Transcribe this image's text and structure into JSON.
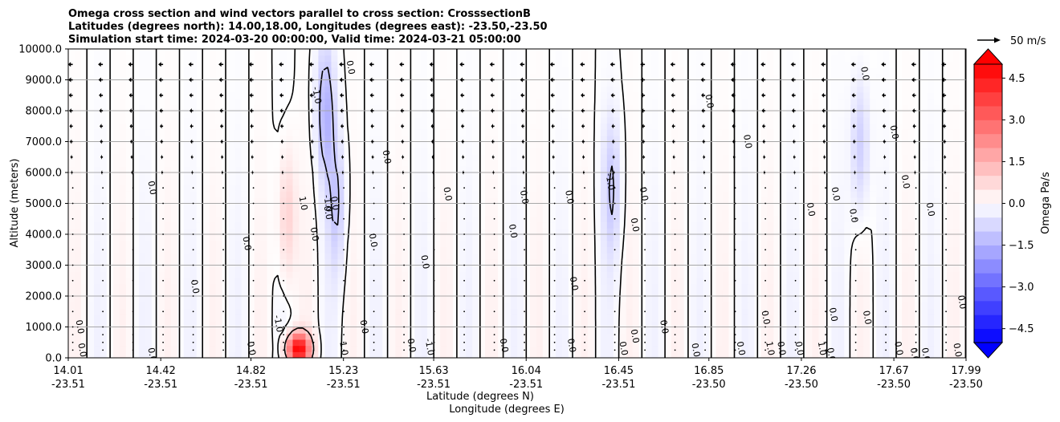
{
  "chart_data": {
    "type": "contour",
    "title_lines": [
      "Omega cross section and wind vectors parallel to cross section: CrosssectionB",
      "Latitudes (degrees north): 14.00,18.00, Longitudes (degrees east): -23.50,-23.50",
      "Simulation start time: 2024-03-20 00:00:00, Valid time: 2024-03-21 05:00:00"
    ],
    "ylabel": "Altitude (meters)",
    "xlabel_lines": [
      "Latitude (degrees N)",
      "Longitude (degrees E)"
    ],
    "ylim": [
      0,
      10000
    ],
    "yticks": [
      0,
      1000,
      2000,
      3000,
      4000,
      5000,
      6000,
      7000,
      8000,
      9000,
      10000
    ],
    "ytick_labels": [
      "0.0",
      "1000.0",
      "2000.0",
      "3000.0",
      "4000.0",
      "5000.0",
      "6000.0",
      "7000.0",
      "8000.0",
      "9000.0",
      "10000.0"
    ],
    "xlim": [
      14.01,
      17.99
    ],
    "xticks": [
      {
        "lat": 14.01,
        "lat_label": "14.01",
        "lon_label": "-23.51"
      },
      {
        "lat": 14.42,
        "lat_label": "14.42",
        "lon_label": "-23.51"
      },
      {
        "lat": 14.82,
        "lat_label": "14.82",
        "lon_label": "-23.51"
      },
      {
        "lat": 15.23,
        "lat_label": "15.23",
        "lon_label": "-23.51"
      },
      {
        "lat": 15.63,
        "lat_label": "15.63",
        "lon_label": "-23.51"
      },
      {
        "lat": 16.04,
        "lat_label": "16.04",
        "lon_label": "-23.51"
      },
      {
        "lat": 16.45,
        "lat_label": "16.45",
        "lon_label": "-23.51"
      },
      {
        "lat": 16.85,
        "lat_label": "16.85",
        "lon_label": "-23.50"
      },
      {
        "lat": 17.26,
        "lat_label": "17.26",
        "lon_label": "-23.50"
      },
      {
        "lat": 17.67,
        "lat_label": "17.67",
        "lon_label": "-23.50"
      },
      {
        "lat": 17.99,
        "lat_label": "17.99",
        "lon_label": "-23.50"
      }
    ],
    "grid": true,
    "colorbar": {
      "label": "Omega Pa/s",
      "vmin": -5.0,
      "vmax": 5.0,
      "ticks": [
        4.5,
        3.0,
        1.5,
        0.0,
        -1.5,
        -3.0,
        -4.5
      ],
      "tick_labels": [
        "4.5",
        "3.0",
        "1.5",
        "0.0",
        "−1.5",
        "−3.0",
        "−4.5"
      ],
      "extend": "both",
      "negative_color": "#0000ff",
      "positive_color": "#ff0000",
      "center_color": "#ffffff"
    },
    "quiver_key": {
      "label": "50 m/s",
      "speed": 50
    },
    "wind_rows_m": [
      250,
      500,
      750,
      1000,
      1500,
      2000,
      2500,
      3000,
      3500,
      4000,
      4500,
      5000,
      5500,
      6000,
      6500,
      7000,
      7500,
      8000,
      8500,
      9000,
      9500
    ],
    "wind_u_by_altitude": [
      {
        "altitude": 1000,
        "u": -2
      },
      {
        "altitude": 5000,
        "u": -3
      },
      {
        "altitude": 6000,
        "u": -5
      },
      {
        "altitude": 7000,
        "u": -8
      },
      {
        "altitude": 8000,
        "u": -10
      },
      {
        "altitude": 9000,
        "u": -12
      },
      {
        "altitude": 9500,
        "u": -13
      }
    ],
    "omega_features": [
      {
        "lat": 15.03,
        "alt": 300,
        "value": 5.0,
        "note": "strong updraft core near surface"
      },
      {
        "lat": 14.98,
        "alt": 4500,
        "value": 1.0
      },
      {
        "lat": 15.15,
        "alt": 8000,
        "value": -1.5
      },
      {
        "lat": 15.2,
        "alt": 5000,
        "value": -1.0
      },
      {
        "lat": 16.42,
        "alt": 5500,
        "value": -1.0
      },
      {
        "lat": 17.52,
        "alt": 6800,
        "value": -1.0
      }
    ],
    "contour_labels": [
      {
        "text": "0.0",
        "lat": 14.06,
        "alt": 1000
      },
      {
        "text": "0.0",
        "lat": 14.07,
        "alt": 250
      },
      {
        "text": "0.0",
        "lat": 14.38,
        "alt": 100
      },
      {
        "text": "0.0",
        "lat": 14.38,
        "alt": 5500
      },
      {
        "text": "0.0",
        "lat": 14.57,
        "alt": 2300
      },
      {
        "text": "0.0",
        "lat": 14.8,
        "alt": 3700
      },
      {
        "text": "0.0",
        "lat": 14.82,
        "alt": 300
      },
      {
        "text": "1.0",
        "lat": 15.05,
        "alt": 5000
      },
      {
        "text": "0.0",
        "lat": 15.1,
        "alt": 4000
      },
      {
        "text": "-1.0",
        "lat": 15.16,
        "alt": 5000
      },
      {
        "text": "0.0",
        "lat": 15.19,
        "alt": 5000
      },
      {
        "text": "-1.0",
        "lat": 15.11,
        "alt": 8500
      },
      {
        "text": "0.0",
        "lat": 15.26,
        "alt": 9400
      },
      {
        "text": "-1.0",
        "lat": 14.94,
        "alt": 1100
      },
      {
        "text": "1.0",
        "lat": 15.23,
        "alt": 300
      },
      {
        "text": "0.0",
        "lat": 15.36,
        "alt": 3800
      },
      {
        "text": "0.0",
        "lat": 15.16,
        "alt": 4700
      },
      {
        "text": "0.0",
        "lat": 15.32,
        "alt": 1000
      },
      {
        "text": "0.0",
        "lat": 15.42,
        "alt": 6500
      },
      {
        "text": "0.0",
        "lat": 15.59,
        "alt": 3100
      },
      {
        "text": "0.0",
        "lat": 15.69,
        "alt": 5300
      },
      {
        "text": "-1.0",
        "lat": 15.61,
        "alt": 350
      },
      {
        "text": "0.0",
        "lat": 15.53,
        "alt": 400
      },
      {
        "text": "0.0",
        "lat": 15.98,
        "alt": 4100
      },
      {
        "text": "0.0",
        "lat": 16.03,
        "alt": 5200
      },
      {
        "text": "0.0",
        "lat": 15.94,
        "alt": 400
      },
      {
        "text": "0.0",
        "lat": 16.23,
        "alt": 5200
      },
      {
        "text": "0.0",
        "lat": 16.25,
        "alt": 2400
      },
      {
        "text": "0.0",
        "lat": 16.24,
        "alt": 400
      },
      {
        "text": "-1.0",
        "lat": 16.41,
        "alt": 5700
      },
      {
        "text": "0.0",
        "lat": 16.52,
        "alt": 4300
      },
      {
        "text": "0.0",
        "lat": 16.56,
        "alt": 5300
      },
      {
        "text": "0.0",
        "lat": 16.52,
        "alt": 700
      },
      {
        "text": "0.0",
        "lat": 16.65,
        "alt": 1000
      },
      {
        "text": "0.0",
        "lat": 16.47,
        "alt": 300
      },
      {
        "text": "0.0",
        "lat": 16.85,
        "alt": 8300
      },
      {
        "text": "0.0",
        "lat": 16.79,
        "alt": 250
      },
      {
        "text": "0.0",
        "lat": 17.02,
        "alt": 7000
      },
      {
        "text": "0.0",
        "lat": 16.99,
        "alt": 300
      },
      {
        "text": "0.0",
        "lat": 17.1,
        "alt": 1300
      },
      {
        "text": "1.0",
        "lat": 17.12,
        "alt": 300
      },
      {
        "text": "0.0",
        "lat": 17.17,
        "alt": 300
      },
      {
        "text": "0.0",
        "lat": 17.25,
        "alt": 300
      },
      {
        "text": "0.0",
        "lat": 17.3,
        "alt": 4800
      },
      {
        "text": "1.0",
        "lat": 17.35,
        "alt": 300
      },
      {
        "text": "0.0",
        "lat": 17.4,
        "alt": 1400
      },
      {
        "text": "0.0",
        "lat": 17.41,
        "alt": 5300
      },
      {
        "text": "0.0",
        "lat": 17.49,
        "alt": 4600
      },
      {
        "text": "0.0",
        "lat": 17.54,
        "alt": 9200
      },
      {
        "text": "0.0",
        "lat": 17.55,
        "alt": 1300
      },
      {
        "text": "0.0",
        "lat": 17.39,
        "alt": 100
      },
      {
        "text": "0.0",
        "lat": 17.72,
        "alt": 5700
      },
      {
        "text": "0.0",
        "lat": 17.67,
        "alt": 7300
      },
      {
        "text": "0.0",
        "lat": 17.69,
        "alt": 300
      },
      {
        "text": "0.0",
        "lat": 17.76,
        "alt": 100
      },
      {
        "text": "0.0",
        "lat": 17.83,
        "alt": 4800
      },
      {
        "text": "0.0",
        "lat": 17.81,
        "alt": 100
      },
      {
        "text": "0.0",
        "lat": 17.97,
        "alt": 1800
      },
      {
        "text": "0.0",
        "lat": 17.95,
        "alt": 250
      }
    ]
  }
}
